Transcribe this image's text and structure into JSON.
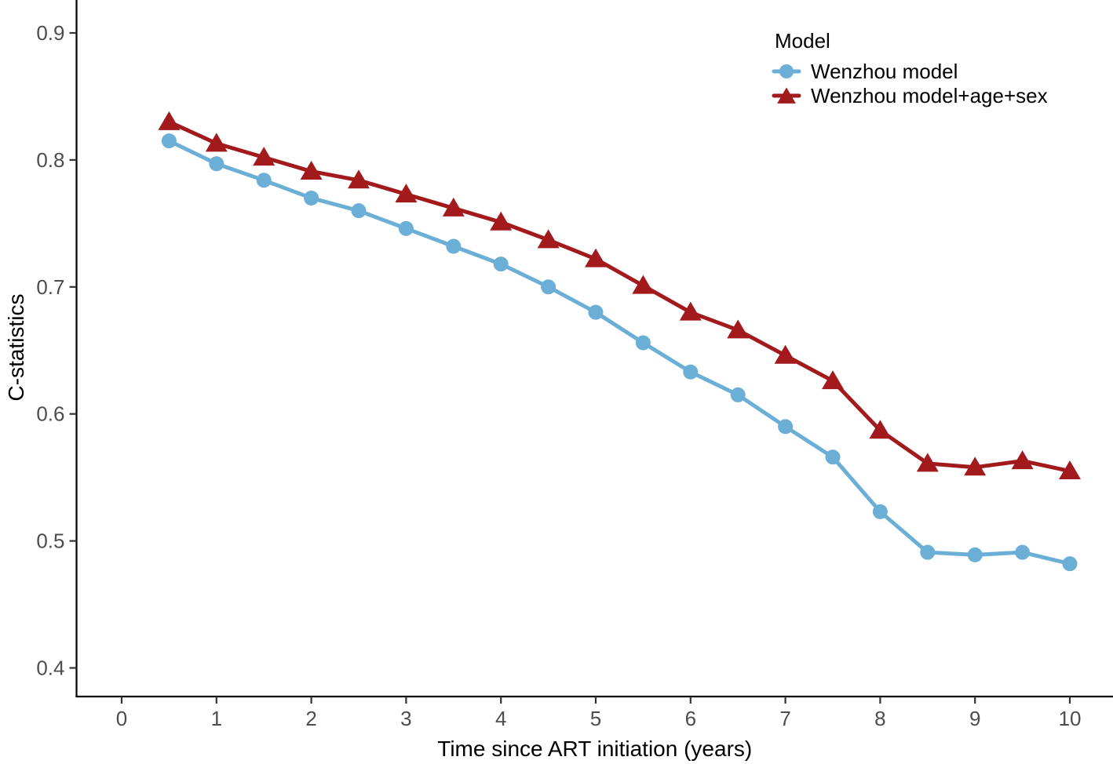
{
  "figure": {
    "background": "#FFFFFF"
  },
  "chart_data": {
    "type": "line",
    "title": "",
    "xlabel": "Time since ART initiation (years)",
    "ylabel": "C-statistics",
    "x_tick_labels": [
      "0",
      "1",
      "2",
      "3",
      "4",
      "5",
      "6",
      "7",
      "8",
      "9",
      "10"
    ],
    "x_ticks": [
      0,
      1,
      2,
      3,
      4,
      5,
      6,
      7,
      8,
      9,
      10
    ],
    "y_tick_labels": [
      "0.4",
      "0.5",
      "0.6",
      "0.7",
      "0.8",
      "0.9"
    ],
    "y_ticks": [
      0.4,
      0.5,
      0.6,
      0.7,
      0.8,
      0.9
    ],
    "xlim": [
      -0.48,
      10.45
    ],
    "ylim": [
      0.373,
      0.926
    ],
    "grid": false,
    "legend": {
      "title": "Model",
      "position": "inside-top-right"
    },
    "x": [
      0.5,
      1,
      1.5,
      2,
      2.5,
      3,
      3.5,
      4,
      4.5,
      5,
      5.5,
      6,
      6.5,
      7,
      7.5,
      8,
      8.5,
      9,
      9.5,
      10
    ],
    "series": [
      {
        "name": "Wenzhou model",
        "marker": "circle",
        "color": "#6BAED6",
        "values": [
          0.815,
          0.797,
          0.784,
          0.77,
          0.76,
          0.746,
          0.732,
          0.718,
          0.7,
          0.68,
          0.656,
          0.633,
          0.615,
          0.59,
          0.566,
          0.523,
          0.491,
          0.489,
          0.491,
          0.482
        ]
      },
      {
        "name": "Wenzhou model+age+sex",
        "marker": "triangle",
        "color": "#A21A1C",
        "values": [
          0.83,
          0.813,
          0.802,
          0.791,
          0.784,
          0.773,
          0.762,
          0.751,
          0.737,
          0.722,
          0.701,
          0.68,
          0.666,
          0.646,
          0.626,
          0.587,
          0.561,
          0.558,
          0.563,
          0.555
        ]
      }
    ]
  },
  "colors": {
    "axis_line": "#000000",
    "tick_mark": "#333333",
    "tick_label": "#4D4D4D",
    "axis_title": "#000000",
    "legend_text": "#000000"
  }
}
